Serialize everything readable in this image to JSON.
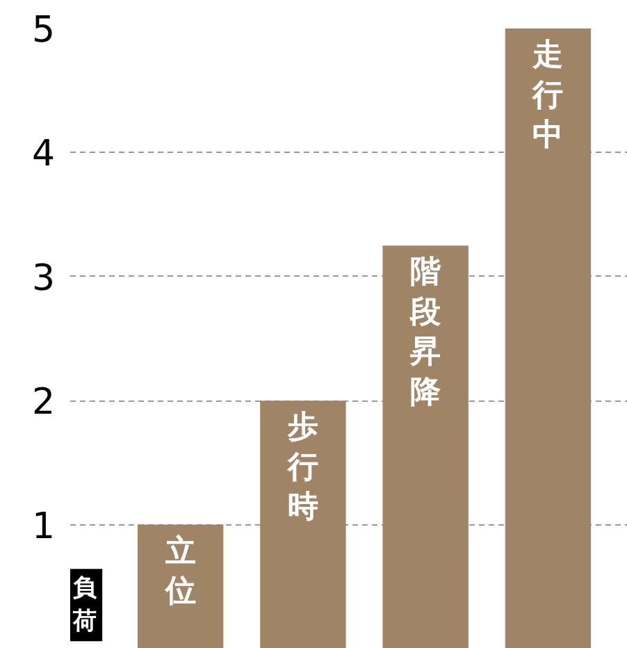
{
  "chart_data": {
    "type": "bar",
    "ylabel": "負荷",
    "categories": [
      "立位",
      "歩行時",
      "階段昇降",
      "走行中"
    ],
    "values": [
      1,
      2,
      3.25,
      5
    ],
    "color": "#a08466",
    "ylim": [
      0,
      5
    ],
    "yticks": [
      1,
      2,
      3,
      4,
      5
    ],
    "grid": "y",
    "tick_labels": "y"
  }
}
